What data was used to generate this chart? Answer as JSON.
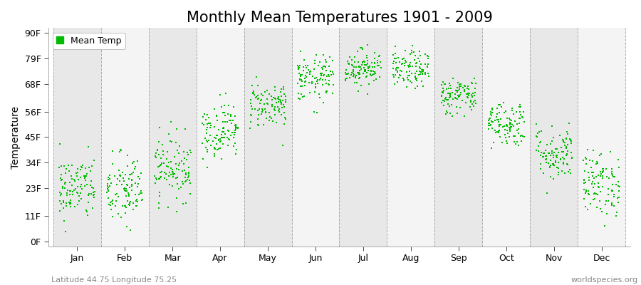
{
  "title": "Monthly Mean Temperatures 1901 - 2009",
  "ylabel": "Temperature",
  "xlabel_labels": [
    "Jan",
    "Feb",
    "Mar",
    "Apr",
    "May",
    "Jun",
    "Jul",
    "Aug",
    "Sep",
    "Oct",
    "Nov",
    "Dec"
  ],
  "ytick_labels": [
    "0F",
    "11F",
    "23F",
    "34F",
    "45F",
    "56F",
    "68F",
    "79F",
    "90F"
  ],
  "ytick_values": [
    0,
    11,
    23,
    34,
    45,
    56,
    68,
    79,
    90
  ],
  "ylim": [
    -2,
    92
  ],
  "dot_color": "#00bb00",
  "dot_size": 3,
  "background_color": "#ffffff",
  "plot_bg_color": "#ffffff",
  "band_color_even": "#e8e8e8",
  "band_color_odd": "#f4f4f4",
  "legend_label": "Mean Temp",
  "footer_left": "Latitude 44.75 Longitude 75.25",
  "footer_right": "worldspecies.org",
  "title_fontsize": 15,
  "label_fontsize": 9,
  "footer_fontsize": 8,
  "monthly_means": [
    23,
    22,
    32,
    48,
    59,
    70,
    75,
    74,
    63,
    51,
    38,
    25
  ],
  "monthly_stds": [
    7,
    8,
    7,
    6,
    5,
    5,
    4,
    4,
    4,
    5,
    6,
    7
  ],
  "n_years": 109,
  "seed": 42
}
